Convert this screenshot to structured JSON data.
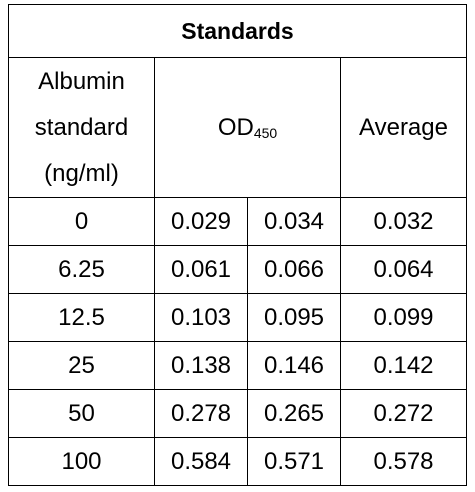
{
  "title": "Standards",
  "headers": {
    "col1_lines": [
      "Albumin",
      "standard",
      "(ng/ml)"
    ],
    "od_main": "OD",
    "od_sub": "450",
    "average": "Average"
  },
  "rows": [
    {
      "std": "0",
      "od1": "0.029",
      "od2": "0.034",
      "avg": "0.032"
    },
    {
      "std": "6.25",
      "od1": "0.061",
      "od2": "0.066",
      "avg": "0.064"
    },
    {
      "std": "12.5",
      "od1": "0.103",
      "od2": "0.095",
      "avg": "0.099"
    },
    {
      "std": "25",
      "od1": "0.138",
      "od2": "0.146",
      "avg": "0.142"
    },
    {
      "std": "50",
      "od1": "0.278",
      "od2": "0.265",
      "avg": "0.272"
    },
    {
      "std": "100",
      "od1": "0.584",
      "od2": "0.571",
      "avg": "0.578"
    }
  ]
}
